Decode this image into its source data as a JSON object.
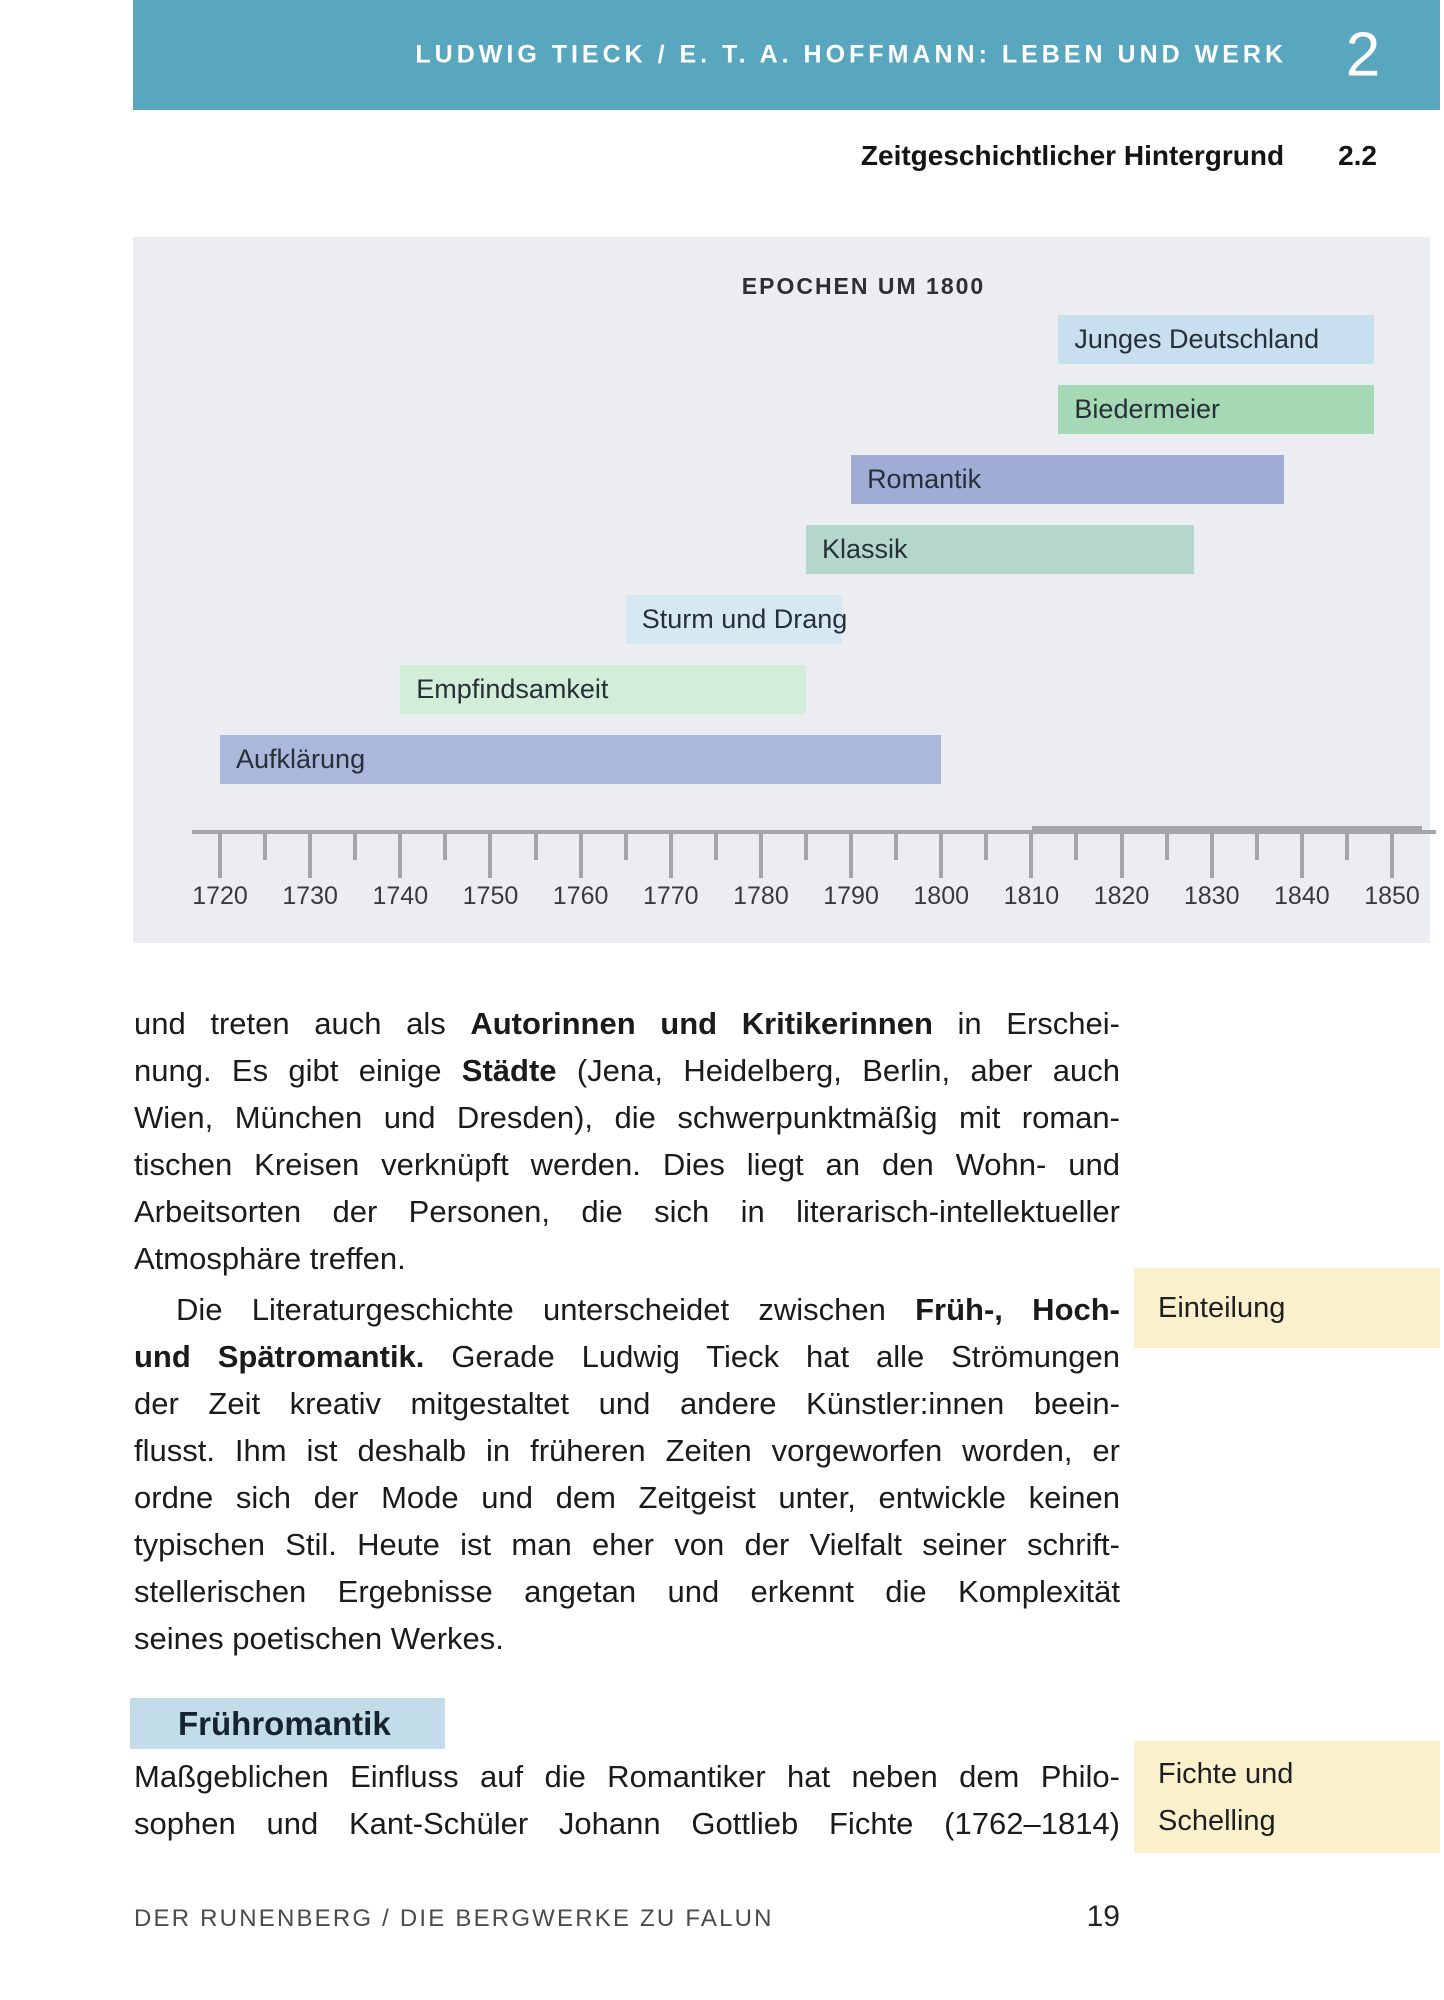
{
  "header": {
    "chapter_title": "LUDWIG TIECK / E. T. A. HOFFMANN: LEBEN UND WERK",
    "chapter_number": "2"
  },
  "breadcrumb": {
    "section_title": "Zeitgeschichtlicher Hintergrund",
    "section_number": "2.2"
  },
  "chart_data": {
    "type": "bar",
    "orientation": "horizontal-timeline",
    "title": "EPOCHEN UM 1800",
    "axis": {
      "min": 1720,
      "max": 1850,
      "major_ticks": [
        1720,
        1730,
        1740,
        1750,
        1760,
        1770,
        1780,
        1790,
        1800,
        1810,
        1820,
        1830,
        1840,
        1850
      ],
      "minor_tick_step": 5,
      "grid": false
    },
    "epochs": [
      {
        "label": "Junges Deutschland",
        "start": 1813,
        "end": 1848,
        "color": "#c7dfee"
      },
      {
        "label": "Biedermeier",
        "start": 1813,
        "end": 1848,
        "color": "#a5d8b5"
      },
      {
        "label": "Romantik",
        "start": 1790,
        "end": 1838,
        "color": "#a0acd6"
      },
      {
        "label": "Klassik",
        "start": 1785,
        "end": 1828,
        "color": "#b5d7cb"
      },
      {
        "label": "Sturm und Drang",
        "start": 1765,
        "end": 1789,
        "color": "#d6e9f3"
      },
      {
        "label": "Empfindsamkeit",
        "start": 1740,
        "end": 1785,
        "color": "#d2edd8"
      },
      {
        "label": "Aufklärung",
        "start": 1720,
        "end": 1800,
        "color": "#abb7db"
      }
    ]
  },
  "body": {
    "paragraphs": [
      {
        "lines": [
          {
            "indent": false,
            "last": false,
            "segments": [
              {
                "t": "und treten auch als ",
                "b": false
              },
              {
                "t": "Autorinnen und Kritikerinnen",
                "b": true
              },
              {
                "t": " in Erschei-",
                "b": false
              }
            ]
          },
          {
            "indent": false,
            "last": false,
            "segments": [
              {
                "t": "nung. Es gibt einige ",
                "b": false
              },
              {
                "t": "Städte",
                "b": true
              },
              {
                "t": " (Jena, Heidelberg, Berlin, aber auch",
                "b": false
              }
            ]
          },
          {
            "indent": false,
            "last": false,
            "segments": [
              {
                "t": "Wien, München und Dresden), die schwerpunktmäßig mit roman-",
                "b": false
              }
            ]
          },
          {
            "indent": false,
            "last": false,
            "segments": [
              {
                "t": "tischen Kreisen verknüpft werden. Dies liegt an den Wohn- und",
                "b": false
              }
            ]
          },
          {
            "indent": false,
            "last": false,
            "segments": [
              {
                "t": "Arbeitsorten der Personen, die sich in literarisch-intellektueller",
                "b": false
              }
            ]
          },
          {
            "indent": false,
            "last": true,
            "segments": [
              {
                "t": "Atmosphäre treffen.",
                "b": false
              }
            ]
          }
        ]
      },
      {
        "lines": [
          {
            "indent": true,
            "last": false,
            "segments": [
              {
                "t": "Die Literaturgeschichte unterscheidet zwischen ",
                "b": false
              },
              {
                "t": "Früh-, Hoch-",
                "b": true
              }
            ]
          },
          {
            "indent": false,
            "last": false,
            "segments": [
              {
                "t": "und Spätromantik.",
                "b": true
              },
              {
                "t": " Gerade Ludwig Tieck hat alle Strömungen",
                "b": false
              }
            ]
          },
          {
            "indent": false,
            "last": false,
            "segments": [
              {
                "t": "der Zeit kreativ mitgestaltet und andere Künstler:innen beein-",
                "b": false
              }
            ]
          },
          {
            "indent": false,
            "last": false,
            "segments": [
              {
                "t": "flusst. Ihm ist deshalb in früheren Zeiten vorgeworfen worden, er",
                "b": false
              }
            ]
          },
          {
            "indent": false,
            "last": false,
            "segments": [
              {
                "t": "ordne sich der Mode und dem Zeitgeist unter, entwickle keinen",
                "b": false
              }
            ]
          },
          {
            "indent": false,
            "last": false,
            "segments": [
              {
                "t": "typischen Stil. Heute ist man eher von der Vielfalt seiner schrift-",
                "b": false
              }
            ]
          },
          {
            "indent": false,
            "last": false,
            "segments": [
              {
                "t": "stellerischen Ergebnisse angetan und erkennt die Komplexität",
                "b": false
              }
            ]
          },
          {
            "indent": false,
            "last": true,
            "segments": [
              {
                "t": "seines poetischen Werkes.",
                "b": false
              }
            ]
          }
        ]
      },
      {
        "lines": [
          {
            "indent": false,
            "last": false,
            "segments": [
              {
                "t": "Maßgeblichen Einfluss auf die Romantiker hat neben dem Philo-",
                "b": false
              }
            ]
          },
          {
            "indent": false,
            "last": false,
            "segments": [
              {
                "t": "sophen und Kant-Schüler Johann Gottlieb Fichte (1762–1814)",
                "b": false
              }
            ]
          }
        ]
      }
    ]
  },
  "margin_notes": [
    {
      "lines": [
        "Einteilung"
      ]
    },
    {
      "lines": [
        "Fichte und",
        "Schelling"
      ]
    }
  ],
  "section_heading": "Frühromantik",
  "footer": {
    "book_title": "DER RUNENBERG / DIE BERGWERKE ZU FALUN",
    "page_number": "19"
  },
  "colors": {
    "header_teal": "#58a7be",
    "chart_background": "#ecedf0",
    "axis_gray": "#a3a5aa",
    "margin_note_yellow": "#faf0cb",
    "heading_blue": "#c3dcea"
  }
}
